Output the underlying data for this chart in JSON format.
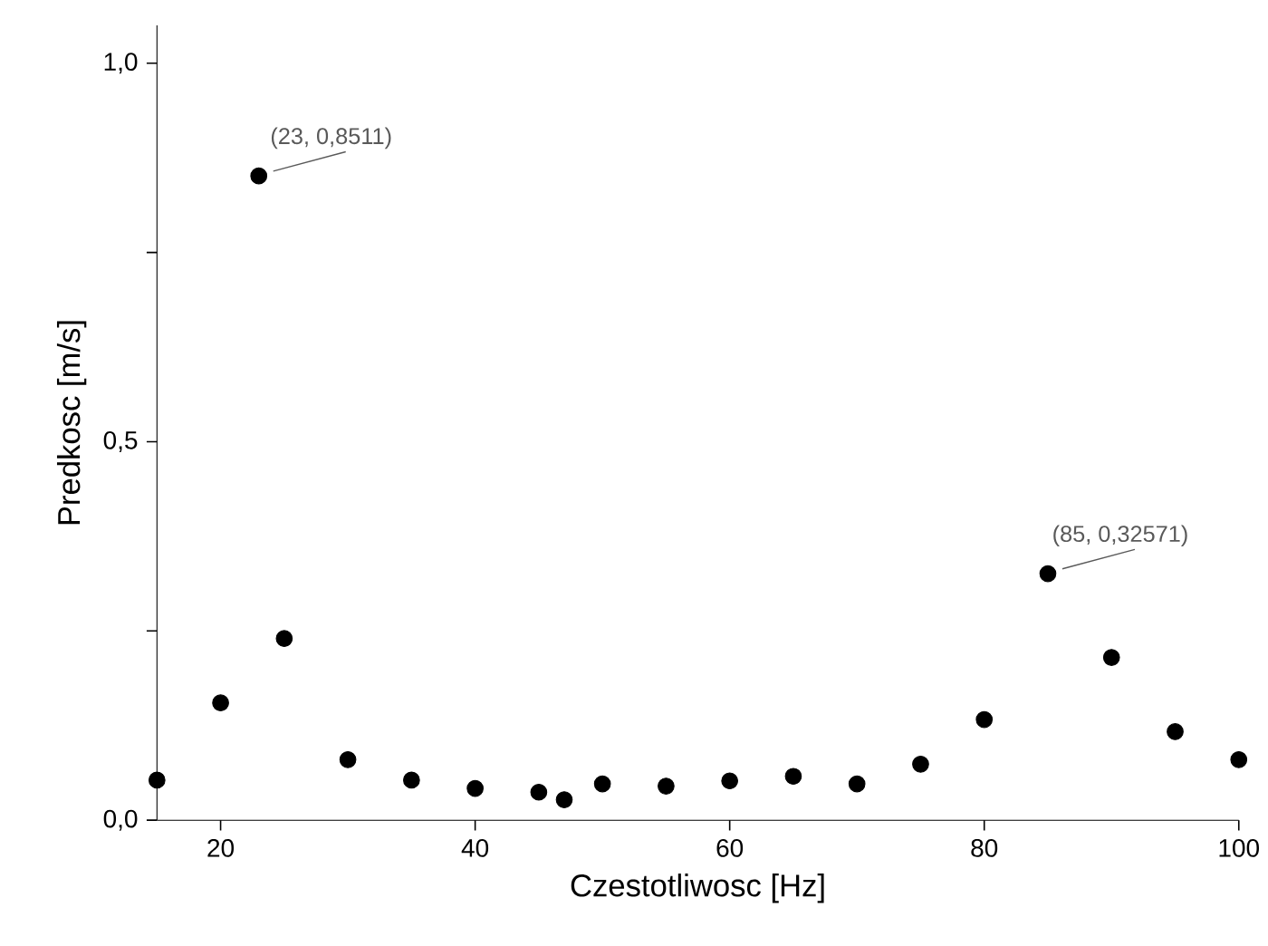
{
  "chart_data": {
    "type": "scatter",
    "xlabel": "Czestotliwosc [Hz]",
    "ylabel": "Predkosc [m/s]",
    "x": [
      15,
      20,
      23,
      25,
      30,
      35,
      40,
      45,
      47,
      50,
      55,
      60,
      65,
      70,
      75,
      80,
      85,
      90,
      95,
      100
    ],
    "values": [
      0.053,
      0.155,
      0.8511,
      0.24,
      0.08,
      0.053,
      0.042,
      0.037,
      0.027,
      0.048,
      0.045,
      0.052,
      0.058,
      0.048,
      0.074,
      0.133,
      0.32571,
      0.215,
      0.117,
      0.08
    ],
    "color": "#000000",
    "xlim": [
      15,
      100
    ],
    "ylim": [
      0,
      1.05
    ],
    "xticks": [
      20,
      40,
      60,
      80,
      100
    ],
    "yticks": [
      {
        "value": 0,
        "label": "0,0"
      },
      {
        "value": 0.25,
        "label": null
      },
      {
        "value": 0.5,
        "label": "0,5"
      },
      {
        "value": 0.75,
        "label": null
      },
      {
        "value": 1.0,
        "label": "1,0"
      }
    ],
    "annotations": [
      {
        "text": "(23, 0,8511)",
        "x": 23,
        "y": 0.8511
      },
      {
        "text": "(85, 0,32571)",
        "x": 85,
        "y": 0.32571
      }
    ]
  }
}
